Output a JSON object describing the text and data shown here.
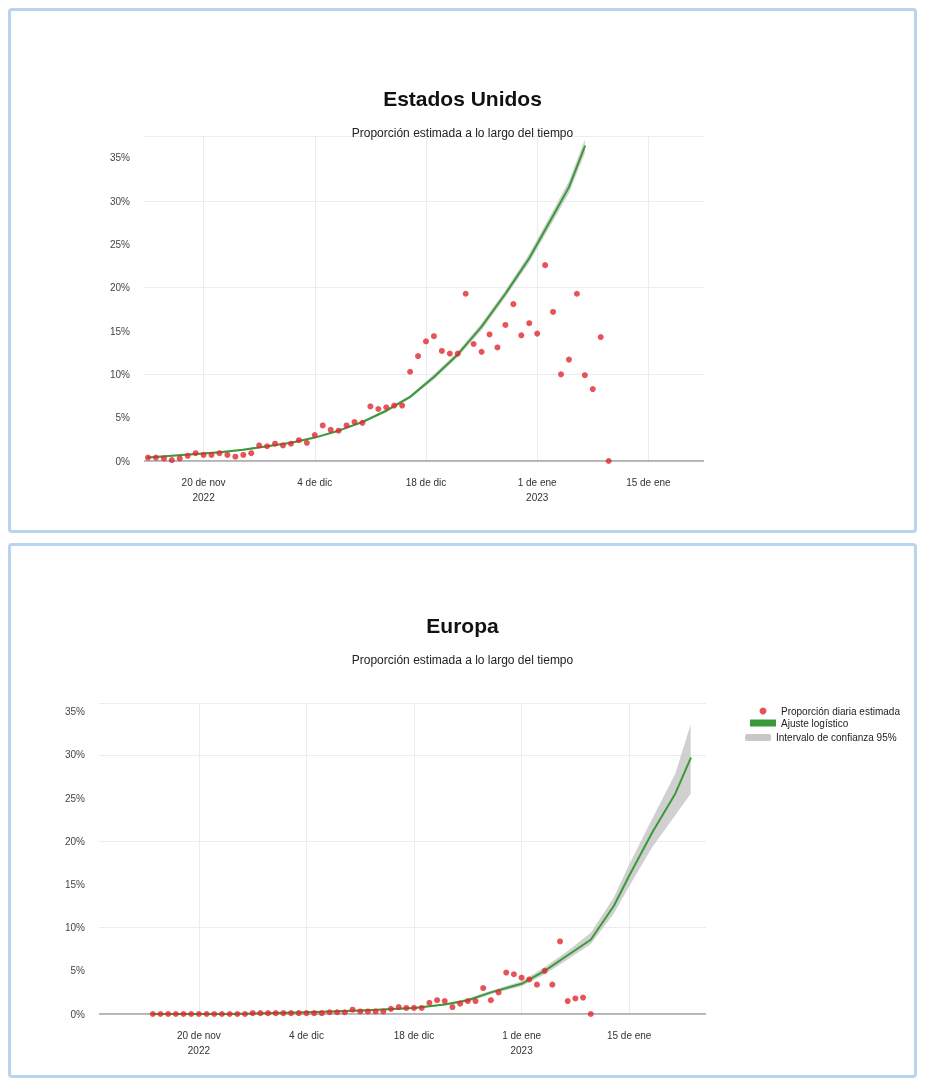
{
  "chart_data": [
    {
      "type": "scatter",
      "title": "Estados Unidos",
      "subtitle": "Proporción estimada a lo largo del tiempo",
      "xlim": [
        "2022-11-12T12:00",
        "2023-01-22"
      ],
      "xticks": [
        {
          "value": "2022-11-20",
          "label": "20 de nov\n2022"
        },
        {
          "value": "2022-12-04",
          "label": "4 de dic"
        },
        {
          "value": "2022-12-18",
          "label": "18 de dic"
        },
        {
          "value": "2023-01-01",
          "label": "1 de ene\n2023"
        },
        {
          "value": "2023-01-15",
          "label": "15 de ene"
        }
      ],
      "ylim": [
        0,
        37.5
      ],
      "yticks": [
        {
          "value": 0,
          "label": "0%"
        },
        {
          "value": 5,
          "label": "5%"
        },
        {
          "value": 10,
          "label": "10%"
        },
        {
          "value": 15,
          "label": "15%"
        },
        {
          "value": 20,
          "label": "20%"
        },
        {
          "value": 25,
          "label": "25%"
        },
        {
          "value": 30,
          "label": "30%"
        },
        {
          "value": 35,
          "label": "35%"
        }
      ],
      "grid": true,
      "legend": false,
      "series": [
        {
          "type": "scatter",
          "color": "#e0282e",
          "marker": "circle",
          "x": [
            "2022-11-13",
            "2022-11-14",
            "2022-11-15",
            "2022-11-16",
            "2022-11-17",
            "2022-11-18",
            "2022-11-19",
            "2022-11-20",
            "2022-11-21",
            "2022-11-22",
            "2022-11-23",
            "2022-11-24",
            "2022-11-25",
            "2022-11-26",
            "2022-11-27",
            "2022-11-28",
            "2022-11-29",
            "2022-11-30",
            "2022-12-01",
            "2022-12-02",
            "2022-12-03",
            "2022-12-04",
            "2022-12-05",
            "2022-12-06",
            "2022-12-07",
            "2022-12-08",
            "2022-12-09",
            "2022-12-10",
            "2022-12-11",
            "2022-12-12",
            "2022-12-13",
            "2022-12-14",
            "2022-12-15",
            "2022-12-16",
            "2022-12-17",
            "2022-12-18",
            "2022-12-19",
            "2022-12-20",
            "2022-12-21",
            "2022-12-22",
            "2022-12-23",
            "2022-12-24",
            "2022-12-25",
            "2022-12-26",
            "2022-12-27",
            "2022-12-28",
            "2022-12-29",
            "2022-12-30",
            "2022-12-31",
            "2023-01-01",
            "2023-01-02",
            "2023-01-03",
            "2023-01-04",
            "2023-01-05",
            "2023-01-06",
            "2023-01-07",
            "2023-01-08",
            "2023-01-09",
            "2023-01-10"
          ],
          "values": [
            0.4,
            0.4,
            0.3,
            0.1,
            0.3,
            0.6,
            0.9,
            0.7,
            0.7,
            0.9,
            0.7,
            0.5,
            0.7,
            0.9,
            1.8,
            1.7,
            2.0,
            1.8,
            2.0,
            2.4,
            2.1,
            3.0,
            4.1,
            3.6,
            3.5,
            4.1,
            4.5,
            4.4,
            6.3,
            6.0,
            6.2,
            6.4,
            6.4,
            10.3,
            12.1,
            13.8,
            14.4,
            12.7,
            12.4,
            12.4,
            19.3,
            13.5,
            12.6,
            14.6,
            13.1,
            15.7,
            18.1,
            14.5,
            15.9,
            14.7,
            22.6,
            17.2,
            10.0,
            11.7,
            19.3,
            9.9,
            8.3,
            14.3,
            0
          ]
        },
        {
          "type": "line",
          "color": "#3a9a3a",
          "line_style": "solid",
          "x": [
            "2022-11-13",
            "2022-11-16",
            "2022-11-19",
            "2022-11-22",
            "2022-11-25",
            "2022-11-28",
            "2022-12-01",
            "2022-12-04",
            "2022-12-07",
            "2022-12-10",
            "2022-12-13",
            "2022-12-16",
            "2022-12-19",
            "2022-12-22",
            "2022-12-25",
            "2022-12-28",
            "2022-12-31",
            "2023-01-03",
            "2023-01-05",
            "2023-01-07"
          ],
          "values": [
            0.4,
            0.6,
            0.8,
            1.0,
            1.3,
            1.7,
            2.1,
            2.7,
            3.5,
            4.5,
            5.8,
            7.4,
            9.7,
            12.3,
            15.5,
            19.3,
            23.4,
            28.3,
            31.6,
            36.3
          ],
          "lower": [
            0.3,
            0.5,
            0.7,
            0.9,
            1.2,
            1.6,
            2.0,
            2.6,
            3.4,
            4.4,
            5.6,
            7.2,
            9.4,
            12.0,
            15.1,
            18.9,
            22.9,
            27.7,
            30.9,
            35.5
          ],
          "upper": [
            0.5,
            0.7,
            0.9,
            1.1,
            1.4,
            1.8,
            2.2,
            2.8,
            3.6,
            4.6,
            6.0,
            7.6,
            10.0,
            12.6,
            15.9,
            19.7,
            23.9,
            28.9,
            32.3,
            37.1
          ]
        }
      ]
    },
    {
      "type": "scatter",
      "title": "Europa",
      "subtitle": "Proporción estimada a lo largo del tiempo",
      "xlim": [
        "2022-11-07",
        "2023-01-25"
      ],
      "xticks": [
        {
          "value": "2022-11-20",
          "label": "20 de nov\n2022"
        },
        {
          "value": "2022-12-04",
          "label": "4 de dic"
        },
        {
          "value": "2022-12-18",
          "label": "18 de dic"
        },
        {
          "value": "2023-01-01",
          "label": "1 de ene\n2023"
        },
        {
          "value": "2023-01-15",
          "label": "15 de ene"
        }
      ],
      "ylim": [
        0,
        36
      ],
      "yticks": [
        {
          "value": 0,
          "label": "0%"
        },
        {
          "value": 5,
          "label": "5%"
        },
        {
          "value": 10,
          "label": "10%"
        },
        {
          "value": 15,
          "label": "15%"
        },
        {
          "value": 20,
          "label": "20%"
        },
        {
          "value": 25,
          "label": "25%"
        },
        {
          "value": 30,
          "label": "30%"
        },
        {
          "value": 35,
          "label": "35%"
        }
      ],
      "grid": true,
      "legend": "top right",
      "annotations": [
        "Intervalo de confianza 95%"
      ],
      "series": [
        {
          "type": "scatter",
          "name": "Proporción diaria estimada",
          "color": "#e0282e",
          "marker": "circle",
          "x": [
            "2022-11-14",
            "2022-11-15",
            "2022-11-16",
            "2022-11-17",
            "2022-11-18",
            "2022-11-19",
            "2022-11-20",
            "2022-11-21",
            "2022-11-22",
            "2022-11-23",
            "2022-11-24",
            "2022-11-25",
            "2022-11-26",
            "2022-11-27",
            "2022-11-28",
            "2022-11-29",
            "2022-11-30",
            "2022-12-01",
            "2022-12-02",
            "2022-12-03",
            "2022-12-04",
            "2022-12-05",
            "2022-12-06",
            "2022-12-07",
            "2022-12-08",
            "2022-12-09",
            "2022-12-10",
            "2022-12-11",
            "2022-12-12",
            "2022-12-13",
            "2022-12-14",
            "2022-12-15",
            "2022-12-16",
            "2022-12-17",
            "2022-12-18",
            "2022-12-19",
            "2022-12-20",
            "2022-12-21",
            "2022-12-22",
            "2022-12-23",
            "2022-12-24",
            "2022-12-25",
            "2022-12-26",
            "2022-12-27",
            "2022-12-28",
            "2022-12-29",
            "2022-12-30",
            "2022-12-31",
            "2023-01-01",
            "2023-01-02",
            "2023-01-03",
            "2023-01-04",
            "2023-01-05",
            "2023-01-06",
            "2023-01-07",
            "2023-01-08",
            "2023-01-09",
            "2023-01-10"
          ],
          "values": [
            0,
            0,
            0,
            0,
            0,
            0,
            0,
            0,
            0,
            0,
            0,
            0,
            0,
            0.1,
            0.1,
            0.1,
            0.1,
            0.1,
            0.1,
            0.1,
            0.1,
            0.1,
            0.1,
            0.2,
            0.2,
            0.2,
            0.5,
            0.3,
            0.3,
            0.3,
            0.3,
            0.6,
            0.8,
            0.7,
            0.7,
            0.7,
            1.3,
            1.6,
            1.5,
            0.8,
            1.2,
            1.5,
            1.5,
            3.0,
            1.6,
            2.5,
            4.8,
            4.6,
            4.2,
            4.0,
            3.4,
            5.0,
            3.4,
            8.4,
            1.5,
            1.8,
            1.9,
            0
          ]
        },
        {
          "type": "line",
          "name": "Ajuste logístico",
          "color": "#3a9a3a",
          "line_style": "solid",
          "x": [
            "2022-11-14",
            "2022-11-24",
            "2022-12-04",
            "2022-12-11",
            "2022-12-18",
            "2022-12-22",
            "2022-12-25",
            "2022-12-28",
            "2023-01-01",
            "2023-01-04",
            "2023-01-07",
            "2023-01-10",
            "2023-01-13",
            "2023-01-15",
            "2023-01-18",
            "2023-01-21",
            "2023-01-23"
          ],
          "values": [
            0,
            0,
            0.2,
            0.4,
            0.7,
            1.1,
            1.6,
            2.5,
            3.5,
            5.0,
            6.8,
            8.6,
            12.5,
            16.0,
            21.0,
            25.5,
            29.6
          ],
          "lower": [
            0,
            0,
            0.1,
            0.3,
            0.6,
            1.0,
            1.4,
            2.3,
            3.2,
            4.6,
            6.3,
            8.1,
            11.6,
            14.8,
            19.3,
            23.0,
            25.5
          ],
          "upper": [
            0,
            0.1,
            0.2,
            0.4,
            0.8,
            1.2,
            1.8,
            2.7,
            3.8,
            5.4,
            7.3,
            9.4,
            13.5,
            17.3,
            22.6,
            27.8,
            33.5
          ]
        }
      ]
    }
  ]
}
